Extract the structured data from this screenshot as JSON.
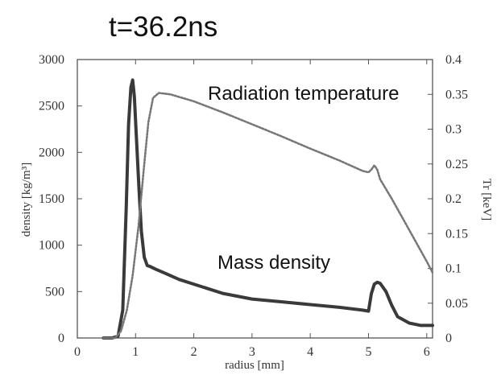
{
  "chart_data": {
    "type": "line",
    "title": "t=36.2ns",
    "xlabel": "radius [mm]",
    "ylabel_left": "density [kg/m³]",
    "ylabel_right": "Tr [keV]",
    "xlim": [
      0,
      6.1
    ],
    "ylim_left": [
      0,
      3000
    ],
    "ylim_right": [
      0,
      0.4
    ],
    "x_ticks": [
      "0",
      "1",
      "2",
      "3",
      "4",
      "5",
      "6"
    ],
    "y_left_ticks": [
      "0",
      "500",
      "1000",
      "1500",
      "2000",
      "2500",
      "3000"
    ],
    "y_right_ticks": [
      "0",
      "0.05",
      "0.1",
      "0.15",
      "0.2",
      "0.25",
      "0.3",
      "0.35",
      "0.4"
    ],
    "annotations": {
      "radiation": "Radiation temperature",
      "density": "Mass density"
    },
    "series": [
      {
        "name": "Mass density",
        "axis": "left",
        "style": "solid",
        "x": [
          0.45,
          0.6,
          0.7,
          0.78,
          0.84,
          0.88,
          0.92,
          0.95,
          0.98,
          1.02,
          1.06,
          1.1,
          1.15,
          1.2,
          1.25,
          1.35,
          1.5,
          1.75,
          2.0,
          2.5,
          3.0,
          3.5,
          4.0,
          4.5,
          4.9,
          5.0,
          5.05,
          5.1,
          5.15,
          5.2,
          5.3,
          5.4,
          5.5,
          5.7,
          5.9,
          6.1
        ],
        "y": [
          0,
          0,
          20,
          300,
          1400,
          2300,
          2700,
          2780,
          2600,
          2100,
          1600,
          1150,
          870,
          780,
          770,
          740,
          700,
          630,
          580,
          480,
          420,
          390,
          360,
          330,
          300,
          290,
          480,
          580,
          600,
          590,
          500,
          350,
          230,
          160,
          135,
          135
        ]
      },
      {
        "name": "Radiation temperature",
        "axis": "right",
        "style": "dotted",
        "x": [
          0.45,
          0.65,
          0.75,
          0.85,
          0.95,
          1.05,
          1.15,
          1.22,
          1.3,
          1.4,
          1.6,
          2.0,
          2.5,
          3.0,
          3.5,
          4.0,
          4.5,
          4.9,
          5.0,
          5.05,
          5.1,
          5.15,
          5.2,
          5.4,
          5.6,
          5.8,
          6.0,
          6.1
        ],
        "y": [
          0,
          0,
          0.01,
          0.04,
          0.09,
          0.16,
          0.25,
          0.31,
          0.345,
          0.352,
          0.35,
          0.34,
          0.324,
          0.307,
          0.29,
          0.272,
          0.255,
          0.24,
          0.238,
          0.242,
          0.248,
          0.242,
          0.228,
          0.2,
          0.17,
          0.14,
          0.11,
          0.094
        ]
      }
    ],
    "grid": false,
    "legend": "none"
  }
}
